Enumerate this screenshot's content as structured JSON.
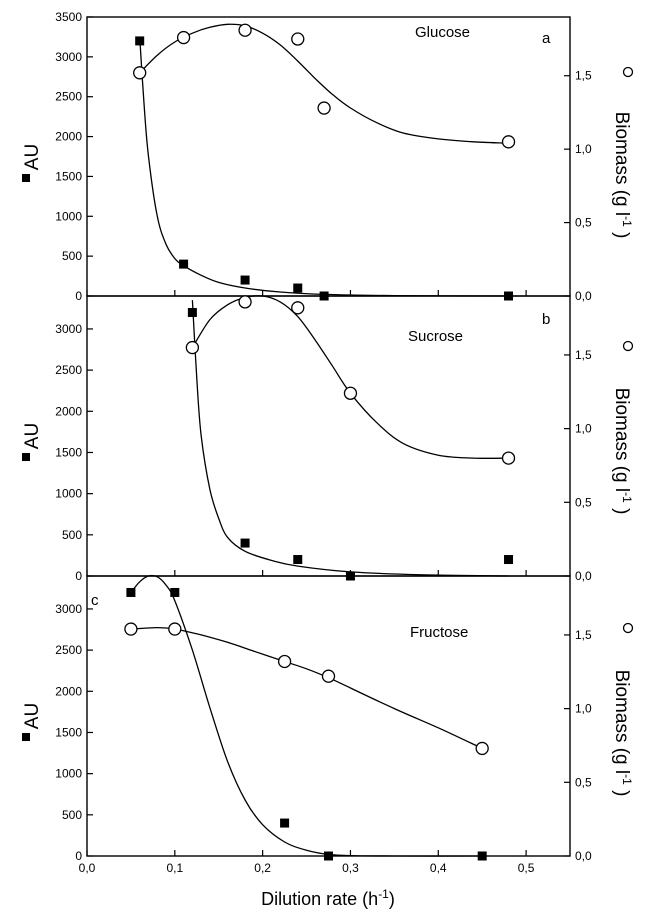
{
  "chart_data": [
    {
      "type": "scatter",
      "panel_letter": "a",
      "annotation": "Glucose",
      "xlim": [
        0.0,
        0.55
      ],
      "ylim": [
        0,
        3500
      ],
      "y2lim": [
        0.0,
        1.9
      ],
      "yticks": [
        {
          "value": 0,
          "label": "0"
        },
        {
          "value": 500,
          "label": "500"
        },
        {
          "value": 1000,
          "label": "1000"
        },
        {
          "value": 1500,
          "label": "1500"
        },
        {
          "value": 2000,
          "label": "2000"
        },
        {
          "value": 2500,
          "label": "2500"
        },
        {
          "value": 3000,
          "label": "3000"
        },
        {
          "value": 3500,
          "label": "3500"
        }
      ],
      "y2ticks": [
        {
          "value": 0.0,
          "label": "0,0"
        },
        {
          "value": 0.5,
          "label": "0,5"
        },
        {
          "value": 1.0,
          "label": "1,0"
        },
        {
          "value": 1.5,
          "label": "1,5"
        }
      ],
      "ylabel": "AU",
      "y2label": "Biomass (g l",
      "y2label_sup": "-1",
      "y2label_end": " )",
      "series": [
        {
          "axis": "left",
          "marker": "square",
          "x": [
            0.06,
            0.11,
            0.18,
            0.24,
            0.27,
            0.48
          ],
          "y": [
            3200,
            400,
            200,
            100,
            0,
            0
          ],
          "fit": {
            "x": [
              0.06,
              0.065,
              0.07,
              0.08,
              0.09,
              0.1,
              0.11,
              0.13,
              0.15,
              0.18,
              0.22,
              0.27,
              0.35,
              0.48
            ],
            "y": [
              3250,
              2400,
              1750,
              1000,
              650,
              470,
              380,
              260,
              170,
              100,
              50,
              20,
              5,
              0
            ]
          }
        },
        {
          "axis": "right",
          "marker": "circle",
          "x": [
            0.06,
            0.11,
            0.18,
            0.24,
            0.27,
            0.48
          ],
          "y": [
            1.52,
            1.76,
            1.81,
            1.75,
            1.28,
            1.05
          ],
          "fit": {
            "x": [
              0.06,
              0.08,
              0.1,
              0.12,
              0.14,
              0.16,
              0.18,
              0.2,
              0.22,
              0.24,
              0.26,
              0.28,
              0.3,
              0.33,
              0.36,
              0.4,
              0.44,
              0.48
            ],
            "y": [
              1.52,
              1.64,
              1.73,
              1.79,
              1.83,
              1.85,
              1.84,
              1.79,
              1.71,
              1.6,
              1.48,
              1.37,
              1.28,
              1.18,
              1.11,
              1.07,
              1.05,
              1.04
            ]
          }
        }
      ]
    },
    {
      "type": "scatter",
      "panel_letter": "b",
      "annotation": "Sucrose",
      "xlim": [
        0.0,
        0.55
      ],
      "ylim": [
        0,
        3400
      ],
      "y2lim": [
        0.0,
        1.9
      ],
      "yticks": [
        {
          "value": 0,
          "label": "0"
        },
        {
          "value": 500,
          "label": "500"
        },
        {
          "value": 1000,
          "label": "1000"
        },
        {
          "value": 1500,
          "label": "1500"
        },
        {
          "value": 2000,
          "label": "2000"
        },
        {
          "value": 2500,
          "label": "2500"
        },
        {
          "value": 3000,
          "label": "3000"
        }
      ],
      "y2ticks": [
        {
          "value": 0.0,
          "label": "0,0"
        },
        {
          "value": 0.5,
          "label": "0,5"
        },
        {
          "value": 1.0,
          "label": "1,0"
        },
        {
          "value": 1.5,
          "label": "1,5"
        }
      ],
      "ylabel": "AU",
      "y2label": "Biomass (g l",
      "y2label_sup": "-1",
      "y2label_end": " )",
      "series": [
        {
          "axis": "left",
          "marker": "square",
          "x": [
            0.12,
            0.18,
            0.24,
            0.3,
            0.48
          ],
          "y": [
            3200,
            400,
            200,
            0,
            200
          ],
          "fit": {
            "x": [
              0.12,
              0.125,
              0.13,
              0.14,
              0.15,
              0.16,
              0.18,
              0.21,
              0.24,
              0.3,
              0.38,
              0.48
            ],
            "y": [
              3350,
              2400,
              1700,
              1050,
              700,
              470,
              300,
              190,
              120,
              50,
              15,
              0
            ]
          }
        },
        {
          "axis": "right",
          "marker": "circle",
          "x": [
            0.12,
            0.18,
            0.24,
            0.3,
            0.48
          ],
          "y": [
            1.55,
            1.86,
            1.82,
            1.24,
            0.8
          ],
          "fit": {
            "x": [
              0.12,
              0.14,
              0.16,
              0.18,
              0.2,
              0.22,
              0.24,
              0.26,
              0.28,
              0.3,
              0.33,
              0.36,
              0.4,
              0.44,
              0.48
            ],
            "y": [
              1.55,
              1.74,
              1.84,
              1.89,
              1.9,
              1.86,
              1.76,
              1.6,
              1.42,
              1.24,
              1.04,
              0.9,
              0.82,
              0.8,
              0.8
            ]
          }
        }
      ]
    },
    {
      "type": "scatter",
      "panel_letter": "c",
      "annotation": "Fructose",
      "xlim": [
        0.0,
        0.55
      ],
      "ylim": [
        0,
        3400
      ],
      "y2lim": [
        0.0,
        1.9
      ],
      "yticks": [
        {
          "value": 0,
          "label": "0"
        },
        {
          "value": 500,
          "label": "500"
        },
        {
          "value": 1000,
          "label": "1000"
        },
        {
          "value": 1500,
          "label": "1500"
        },
        {
          "value": 2000,
          "label": "2000"
        },
        {
          "value": 2500,
          "label": "2500"
        },
        {
          "value": 3000,
          "label": "3000"
        }
      ],
      "y2ticks": [
        {
          "value": 0.0,
          "label": "0,0"
        },
        {
          "value": 0.5,
          "label": "0,5"
        },
        {
          "value": 1.0,
          "label": "1,0"
        },
        {
          "value": 1.5,
          "label": "1,5"
        }
      ],
      "xticks": [
        {
          "value": 0.0,
          "label": "0,0"
        },
        {
          "value": 0.1,
          "label": "0,1"
        },
        {
          "value": 0.2,
          "label": "0,2"
        },
        {
          "value": 0.3,
          "label": "0,3"
        },
        {
          "value": 0.4,
          "label": "0,4"
        },
        {
          "value": 0.5,
          "label": "0,5"
        }
      ],
      "ylabel": "AU",
      "y2label": "Biomass (g l",
      "y2label_sup": "-1",
      "y2label_end": " )",
      "series": [
        {
          "axis": "left",
          "marker": "square",
          "x": [
            0.05,
            0.1,
            0.225,
            0.275,
            0.45
          ],
          "y": [
            3200,
            3200,
            400,
            0,
            0
          ],
          "fit": {
            "x": [
              0.05,
              0.06,
              0.07,
              0.08,
              0.09,
              0.1,
              0.12,
              0.14,
              0.16,
              0.18,
              0.2,
              0.225,
              0.25,
              0.275,
              0.3,
              0.35,
              0.45
            ],
            "y": [
              3200,
              3330,
              3400,
              3390,
              3290,
              3100,
              2500,
              1800,
              1150,
              680,
              380,
              170,
              70,
              20,
              5,
              0,
              0
            ]
          }
        },
        {
          "axis": "right",
          "marker": "circle",
          "x": [
            0.05,
            0.1,
            0.225,
            0.275,
            0.45
          ],
          "y": [
            1.54,
            1.54,
            1.32,
            1.22,
            0.73
          ],
          "fit": {
            "x": [
              0.05,
              0.08,
              0.1,
              0.13,
              0.16,
              0.19,
              0.225,
              0.25,
              0.275,
              0.3,
              0.35,
              0.4,
              0.45
            ],
            "y": [
              1.54,
              1.55,
              1.54,
              1.5,
              1.45,
              1.39,
              1.32,
              1.27,
              1.21,
              1.14,
              1.0,
              0.87,
              0.73
            ]
          }
        }
      ]
    }
  ],
  "xlabel": "Dilution rate (h",
  "xlabel_sup": "-1",
  "xlabel_end": ")"
}
